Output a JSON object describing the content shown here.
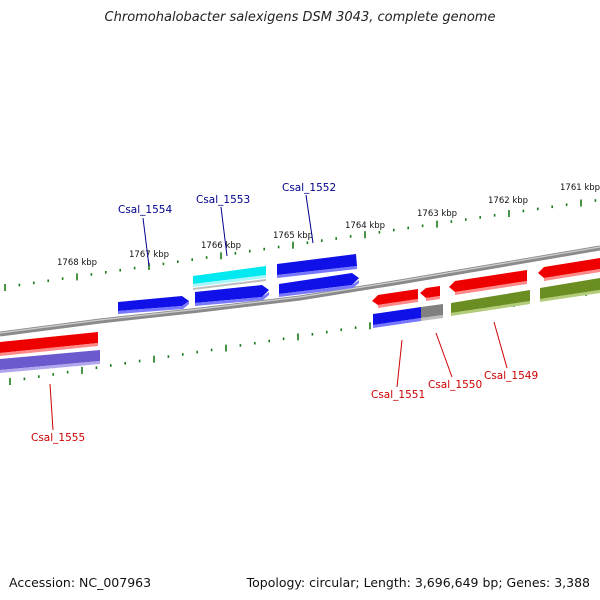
{
  "title": "Chromohalobacter salexigens DSM 3043, complete genome",
  "footer": {
    "accession": "Accession: NC_007963",
    "summary": "Topology: circular; Length: 3,696,649 bp; Genes: 3,388"
  },
  "ticks": [
    "1768 kbp",
    "1767 kbp",
    "1766 kbp",
    "1765 kbp",
    "1764 kbp",
    "1763 kbp",
    "1762 kbp",
    "1761 kbp"
  ],
  "gene_labels": {
    "top": [
      "Csal_1554",
      "Csal_1553",
      "Csal_1552"
    ],
    "bottom": [
      "Csal_1555",
      "Csal_1551",
      "Csal_1550",
      "Csal_1549"
    ]
  },
  "colors": {
    "forward_label": "#00008b",
    "reverse_label": "#cc0000",
    "backbone": "#7a7a7a",
    "tick": "#1a7a1a",
    "blue": "#0000dd",
    "cyan": "#00e5ee",
    "red": "#ee0000",
    "olive": "#6b8e23",
    "purple": "#6a5acd",
    "gray": "#808080"
  }
}
